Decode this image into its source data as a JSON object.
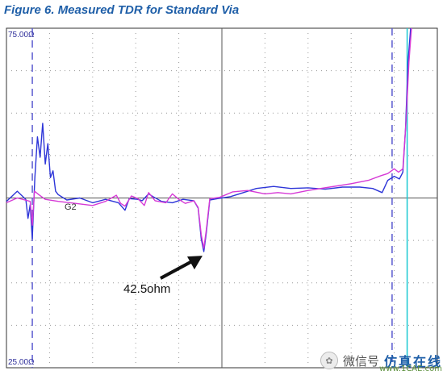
{
  "figure": {
    "label": "Figure 6.",
    "title": "Measured TDR for Standard Via"
  },
  "chart_data": {
    "type": "line",
    "x_range": [
      0,
      10
    ],
    "y_range": [
      25,
      75
    ],
    "y_top_label": "75.00Ω",
    "y_bottom_label": "25.00Ω",
    "channel_label": "G2",
    "grid": true,
    "annotation": {
      "text": "42.5ohm",
      "x": 4.55,
      "y": 41.5
    },
    "colors": {
      "series_blue": "#2d35d8",
      "series_magenta": "#d63ad6",
      "marker_dashed": "#5a5acf",
      "marker_cyan": "#19c8d2",
      "grid": "#9a9a9a",
      "background": "#ffffff"
    },
    "markers": [
      {
        "x": 0.6,
        "style": "dashed"
      },
      {
        "x": 8.95,
        "style": "dashed"
      },
      {
        "x": 9.3,
        "style": "cyan"
      }
    ],
    "series": [
      {
        "color_key": "series_blue",
        "points": [
          [
            0,
            49.5
          ],
          [
            0.25,
            51
          ],
          [
            0.45,
            49.8
          ],
          [
            0.5,
            47
          ],
          [
            0.55,
            49
          ],
          [
            0.6,
            44
          ],
          [
            0.66,
            53
          ],
          [
            0.72,
            59
          ],
          [
            0.78,
            56
          ],
          [
            0.84,
            61
          ],
          [
            0.9,
            55
          ],
          [
            0.96,
            58
          ],
          [
            1.02,
            53
          ],
          [
            1.08,
            54
          ],
          [
            1.14,
            51
          ],
          [
            1.2,
            50.5
          ],
          [
            1.4,
            49.7
          ],
          [
            1.7,
            50
          ],
          [
            2.0,
            49.3
          ],
          [
            2.3,
            49.8
          ],
          [
            2.6,
            49.3
          ],
          [
            2.75,
            48.2
          ],
          [
            2.85,
            49.9
          ],
          [
            3.05,
            49.8
          ],
          [
            3.15,
            49.6
          ],
          [
            3.3,
            50.6
          ],
          [
            3.4,
            50.2
          ],
          [
            3.6,
            49.5
          ],
          [
            3.85,
            49.3
          ],
          [
            4.1,
            49.8
          ],
          [
            4.35,
            49.6
          ],
          [
            4.45,
            48.5
          ],
          [
            4.52,
            44
          ],
          [
            4.58,
            42.1
          ],
          [
            4.64,
            45
          ],
          [
            4.72,
            49.7
          ],
          [
            4.9,
            49.9
          ],
          [
            5.2,
            50.2
          ],
          [
            5.5,
            50.8
          ],
          [
            5.8,
            51.4
          ],
          [
            6.2,
            51.7
          ],
          [
            6.6,
            51.4
          ],
          [
            7.0,
            51.5
          ],
          [
            7.4,
            51.3
          ],
          [
            7.8,
            51.6
          ],
          [
            8.2,
            51.6
          ],
          [
            8.5,
            51.4
          ],
          [
            8.72,
            50.8
          ],
          [
            8.85,
            52.6
          ],
          [
            9.0,
            53.2
          ],
          [
            9.12,
            52.8
          ],
          [
            9.2,
            53.8
          ],
          [
            9.26,
            60
          ],
          [
            9.32,
            70
          ],
          [
            9.38,
            75
          ]
        ]
      },
      {
        "color_key": "series_magenta",
        "points": [
          [
            0,
            49.3
          ],
          [
            0.25,
            50
          ],
          [
            0.55,
            49.5
          ],
          [
            0.6,
            46
          ],
          [
            0.65,
            51
          ],
          [
            0.75,
            50.5
          ],
          [
            0.9,
            49.8
          ],
          [
            1.2,
            49.5
          ],
          [
            1.6,
            49.2
          ],
          [
            2.0,
            48.9
          ],
          [
            2.3,
            49.5
          ],
          [
            2.55,
            50.4
          ],
          [
            2.65,
            49.2
          ],
          [
            2.75,
            48.8
          ],
          [
            2.9,
            50.3
          ],
          [
            3.05,
            49.9
          ],
          [
            3.2,
            48.9
          ],
          [
            3.3,
            50.8
          ],
          [
            3.45,
            49.6
          ],
          [
            3.7,
            49.3
          ],
          [
            3.85,
            50.6
          ],
          [
            4.0,
            49.8
          ],
          [
            4.15,
            49.2
          ],
          [
            4.35,
            49.6
          ],
          [
            4.45,
            48.6
          ],
          [
            4.52,
            44.6
          ],
          [
            4.58,
            42.6
          ],
          [
            4.64,
            45.4
          ],
          [
            4.72,
            49.9
          ],
          [
            4.95,
            50.1
          ],
          [
            5.25,
            50.9
          ],
          [
            5.6,
            51.1
          ],
          [
            6.0,
            50.6
          ],
          [
            6.3,
            50.8
          ],
          [
            6.6,
            50.6
          ],
          [
            7.0,
            51.1
          ],
          [
            7.5,
            51.6
          ],
          [
            8.0,
            52.1
          ],
          [
            8.4,
            52.6
          ],
          [
            8.7,
            53.3
          ],
          [
            8.85,
            53.6
          ],
          [
            9.0,
            54.3
          ],
          [
            9.1,
            53.8
          ],
          [
            9.2,
            54.3
          ],
          [
            9.28,
            62
          ],
          [
            9.34,
            70
          ],
          [
            9.4,
            75
          ]
        ]
      }
    ]
  },
  "watermark": {
    "icon": "wechat-icon",
    "text": "微信号",
    "brand": "仿真在线",
    "site": "www.1CAE.com"
  }
}
